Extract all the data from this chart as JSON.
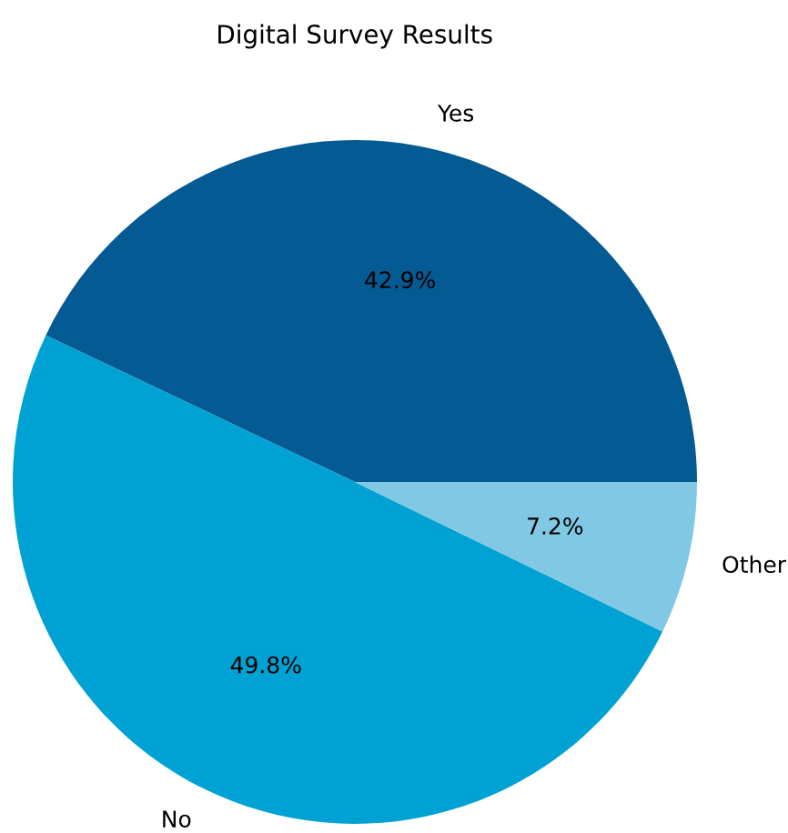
{
  "chart_data": {
    "type": "pie",
    "title": "Digital Survey Results",
    "categories": [
      "Yes",
      "No",
      "Other"
    ],
    "values": [
      42.9,
      49.8,
      7.2
    ],
    "value_labels": [
      "42.9%",
      "49.8%",
      "7.2%"
    ],
    "colors": [
      "#045a93",
      "#00a2d3",
      "#80c8e4"
    ]
  }
}
